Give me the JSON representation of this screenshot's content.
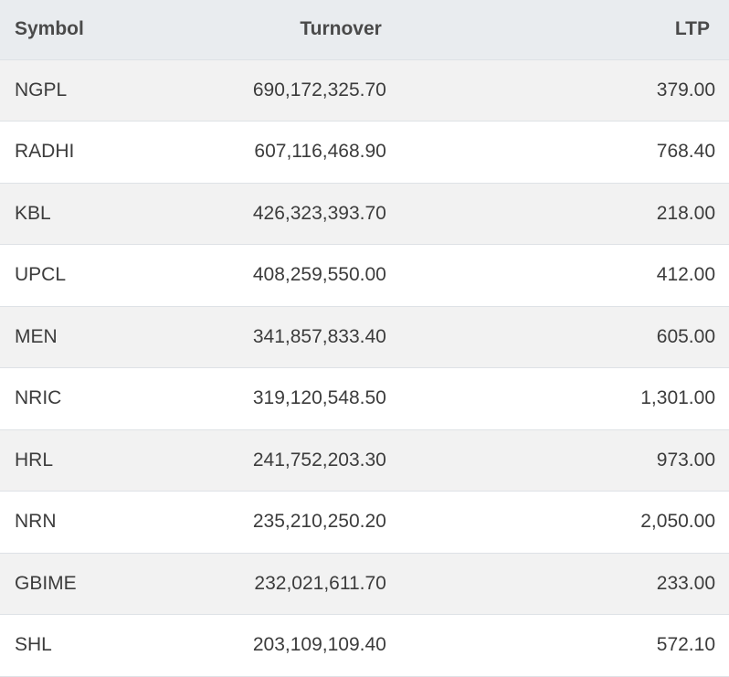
{
  "table": {
    "headers": {
      "symbol": "Symbol",
      "turnover": "Turnover",
      "ltp": "LTP"
    },
    "rows": [
      {
        "symbol": "NGPL",
        "turnover": "690,172,325.70",
        "ltp": "379.00"
      },
      {
        "symbol": "RADHI",
        "turnover": "607,116,468.90",
        "ltp": "768.40"
      },
      {
        "symbol": "KBL",
        "turnover": "426,323,393.70",
        "ltp": "218.00"
      },
      {
        "symbol": "UPCL",
        "turnover": "408,259,550.00",
        "ltp": "412.00"
      },
      {
        "symbol": "MEN",
        "turnover": "341,857,833.40",
        "ltp": "605.00"
      },
      {
        "symbol": "NRIC",
        "turnover": "319,120,548.50",
        "ltp": "1,301.00"
      },
      {
        "symbol": "HRL",
        "turnover": "241,752,203.30",
        "ltp": "973.00"
      },
      {
        "symbol": "NRN",
        "turnover": "235,210,250.20",
        "ltp": "2,050.00"
      },
      {
        "symbol": "GBIME",
        "turnover": "232,021,611.70",
        "ltp": "233.00"
      },
      {
        "symbol": "SHL",
        "turnover": "203,109,109.40",
        "ltp": "572.10"
      }
    ]
  }
}
